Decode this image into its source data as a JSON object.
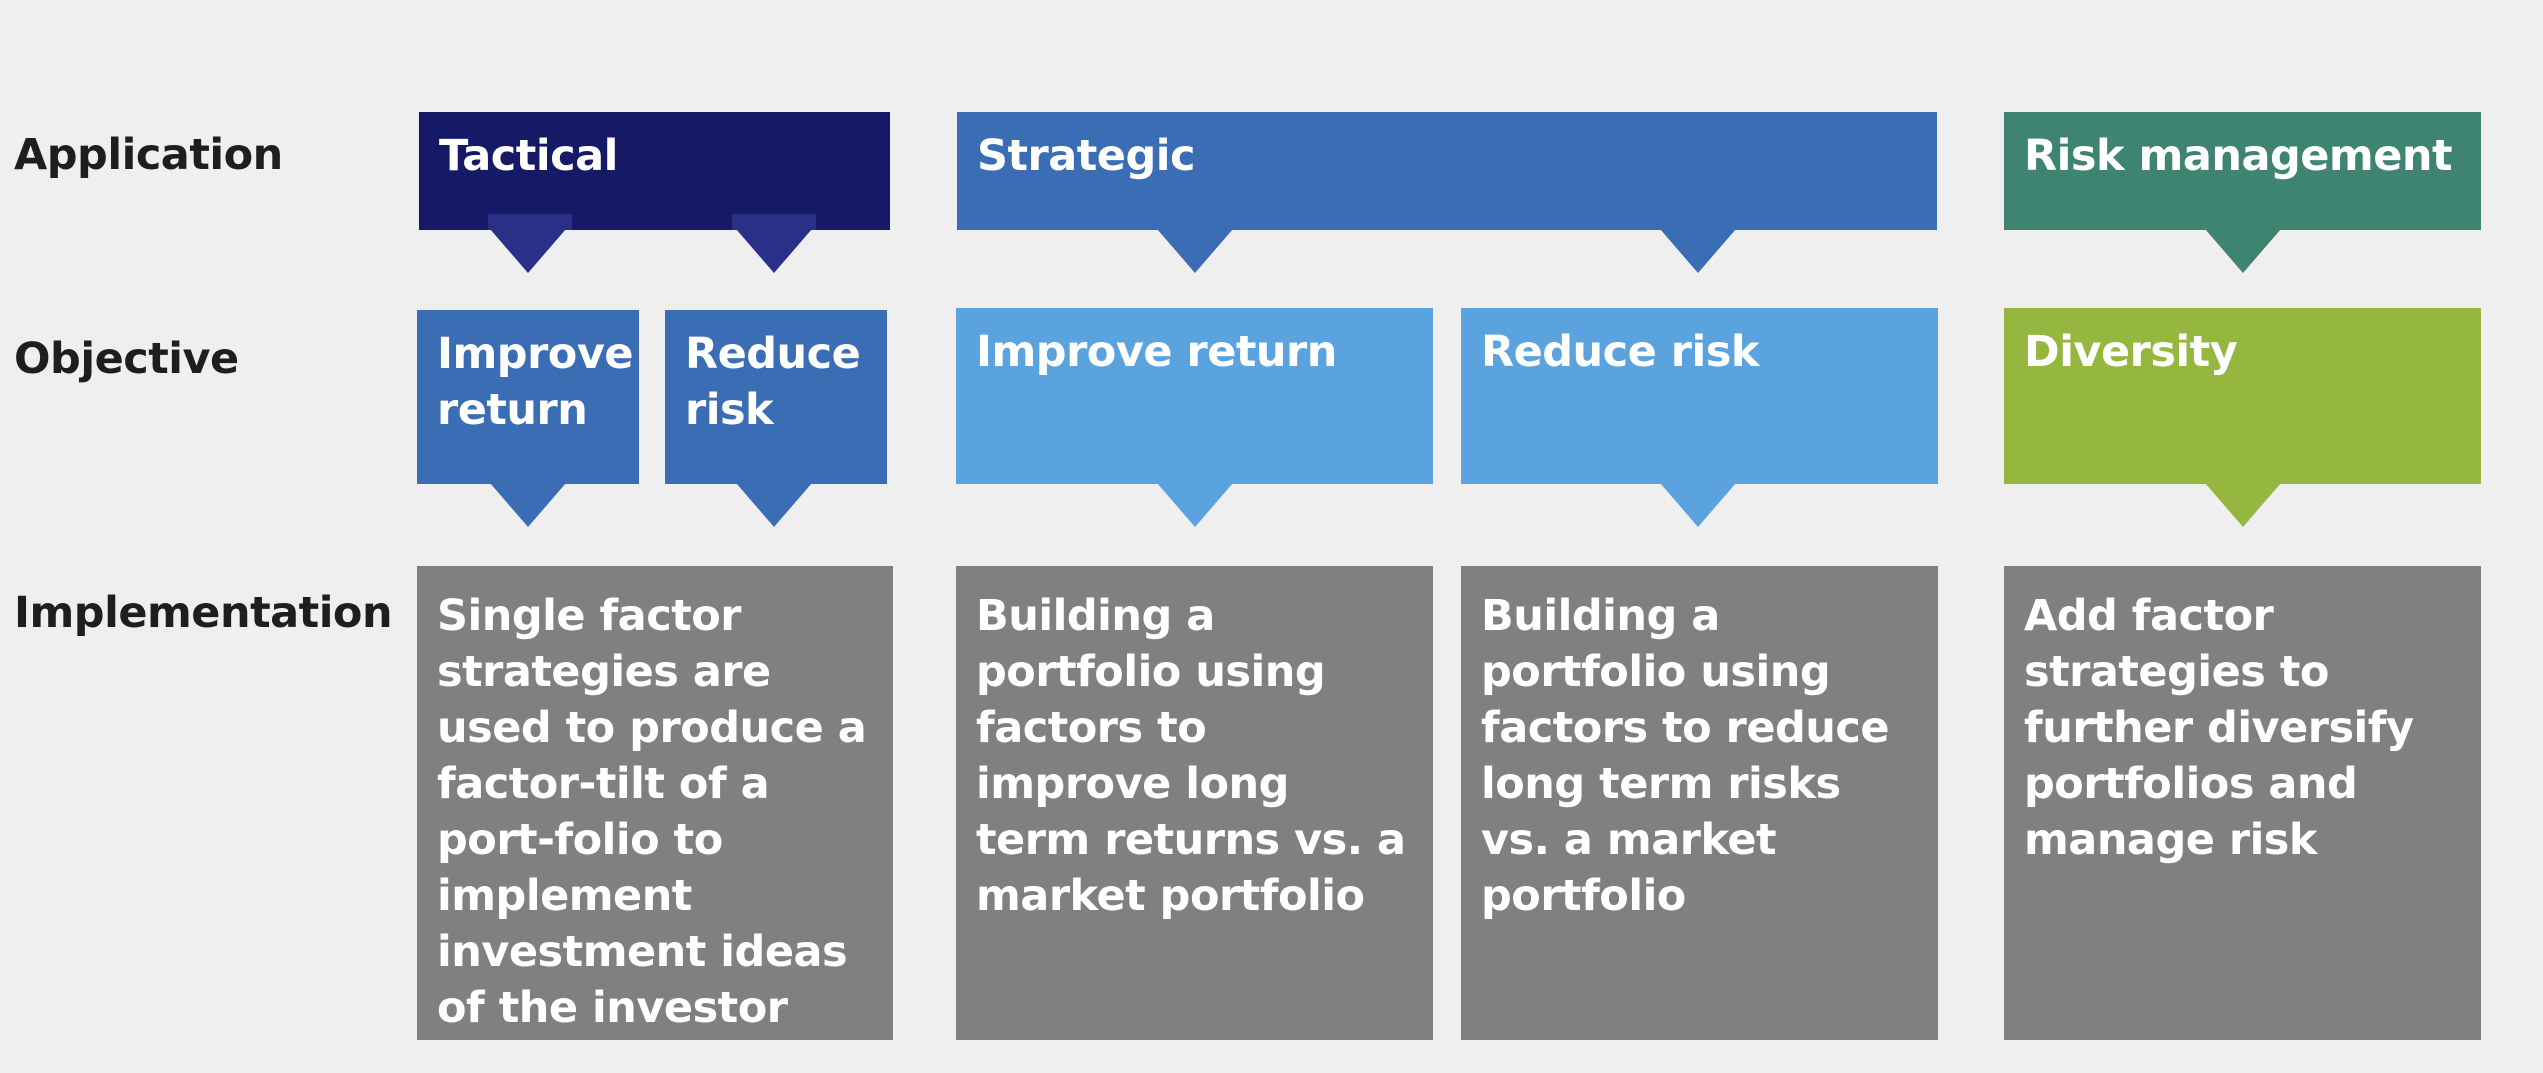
{
  "row_labels": {
    "application": "Application",
    "objective": "Objective",
    "implementation": "Implementation"
  },
  "applications": [
    {
      "label": "Tactical",
      "color": "#161a66"
    },
    {
      "label": "Strategic",
      "color": "#3a6db3"
    },
    {
      "label": "Risk management",
      "color": "#3f8470"
    }
  ],
  "objectives": [
    {
      "label": "Improve return",
      "color": "#3a6db3"
    },
    {
      "label": "Reduce risk",
      "color": "#3a6db3"
    },
    {
      "label": "Improve return",
      "color": "#5ba3de"
    },
    {
      "label": "Reduce risk",
      "color": "#5ba3de"
    },
    {
      "label": "Diversity",
      "color": "#95b73f"
    }
  ],
  "implementations": [
    {
      "text": "Single factor strategies are used to produce a factor-tilt of a port-folio to implement investment ideas of the investor"
    },
    {
      "text": "Building a portfolio using factors to improve long term returns vs. a market portfolio"
    },
    {
      "text": "Building a portfolio using factors to reduce long term risks vs. a market portfolio"
    },
    {
      "text": "Add factor strategies to further diversify portfolios and manage risk"
    }
  ],
  "implementation_color": "#808080"
}
